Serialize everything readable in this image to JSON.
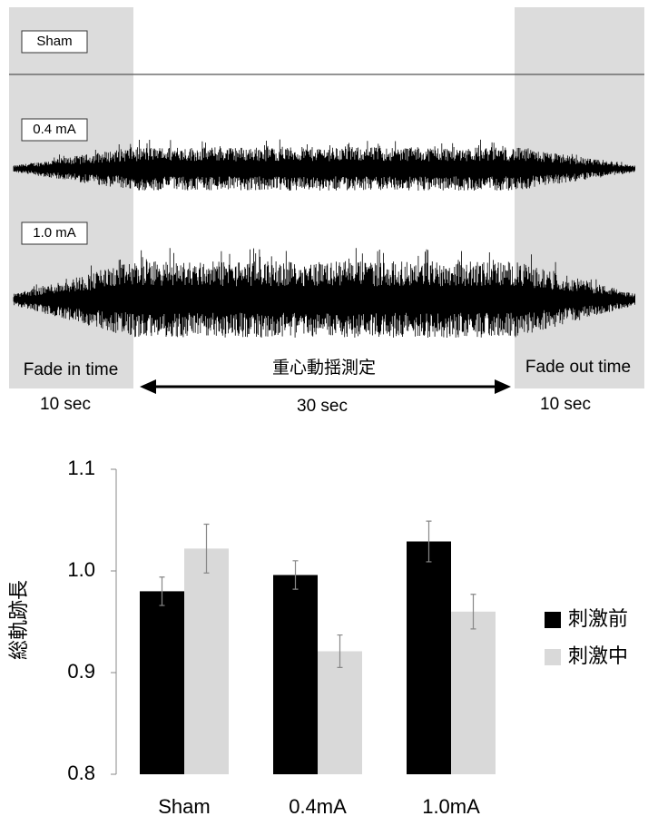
{
  "conditions": [
    {
      "label": "Sham"
    },
    {
      "label": "0.4 mA"
    },
    {
      "label": "1.0 mA"
    }
  ],
  "phases": {
    "fade_in": {
      "label": "Fade in time",
      "duration": "10 sec"
    },
    "measure": {
      "label": "重心動揺測定",
      "duration": "30 sec"
    },
    "fade_out": {
      "label": "Fade out time",
      "duration": "10 sec"
    }
  },
  "chart_data": {
    "type": "bar",
    "y_label": "総軌跡長",
    "categories": [
      "Sham",
      "0.4mA",
      "1.0mA"
    ],
    "series": [
      {
        "name": "刺激前",
        "color": "#000000",
        "values": [
          0.98,
          0.996,
          1.029
        ],
        "errors": [
          0.014,
          0.014,
          0.02
        ]
      },
      {
        "name": "刺激中",
        "color": "#d9d9d9",
        "values": [
          1.022,
          0.921,
          0.96
        ],
        "errors": [
          0.024,
          0.016,
          0.017
        ]
      }
    ],
    "ylim": [
      0.8,
      1.1
    ],
    "yticks": [
      {
        "value": 0.8,
        "label": "0.8"
      },
      {
        "value": 0.9,
        "label": "0.9"
      },
      {
        "value": 1.0,
        "label": "1.0"
      },
      {
        "value": 1.1,
        "label": "1.1"
      }
    ]
  }
}
